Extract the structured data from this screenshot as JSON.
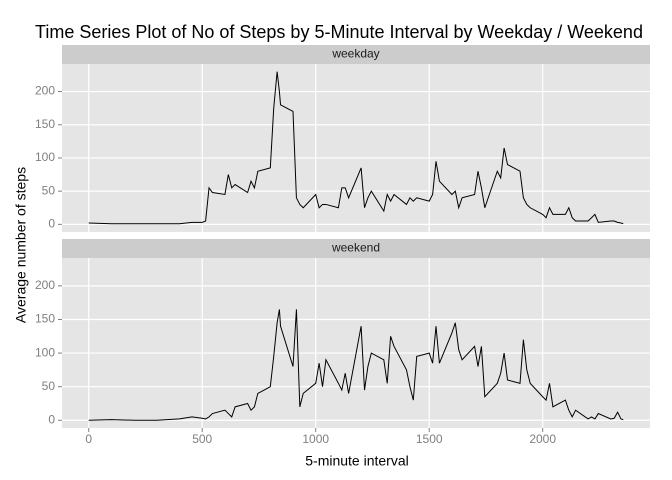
{
  "chart_data": {
    "type": "line",
    "title": "Time Series Plot of No of Steps by 5-Minute Interval by Weekday / Weekend",
    "xlabel": "5-minute interval",
    "ylabel": "Average number of steps",
    "facet": true,
    "grid": true,
    "x": [
      0,
      100,
      200,
      300,
      400,
      455,
      500,
      515,
      530,
      545,
      600,
      615,
      630,
      645,
      700,
      715,
      730,
      745,
      800,
      815,
      830,
      840,
      845,
      900,
      915,
      930,
      945,
      1000,
      1015,
      1030,
      1045,
      1100,
      1115,
      1130,
      1145,
      1200,
      1215,
      1230,
      1245,
      1300,
      1315,
      1330,
      1345,
      1400,
      1415,
      1430,
      1445,
      1500,
      1515,
      1530,
      1545,
      1600,
      1615,
      1630,
      1645,
      1700,
      1715,
      1730,
      1745,
      1800,
      1815,
      1830,
      1845,
      1900,
      1915,
      1930,
      1945,
      2000,
      2015,
      2030,
      2045,
      2100,
      2115,
      2130,
      2145,
      2200,
      2215,
      2230,
      2245,
      2300,
      2315,
      2330,
      2345,
      2355
    ],
    "series": [
      {
        "name": "weekday",
        "color": "#000000",
        "values": [
          2,
          1,
          1,
          1,
          1,
          3,
          3,
          5,
          55,
          48,
          45,
          75,
          55,
          60,
          48,
          65,
          55,
          80,
          85,
          175,
          230,
          200,
          180,
          170,
          40,
          30,
          25,
          45,
          25,
          30,
          30,
          25,
          55,
          55,
          40,
          85,
          25,
          40,
          50,
          20,
          45,
          35,
          45,
          30,
          40,
          35,
          40,
          35,
          45,
          95,
          65,
          45,
          50,
          25,
          40,
          45,
          80,
          55,
          25,
          80,
          70,
          115,
          90,
          80,
          40,
          30,
          25,
          15,
          10,
          25,
          15,
          15,
          25,
          10,
          5,
          5,
          10,
          15,
          3,
          5,
          5,
          3,
          2,
          1
        ]
      },
      {
        "name": "weekend",
        "color": "#000000",
        "values": [
          0,
          1,
          0,
          0,
          2,
          5,
          3,
          2,
          5,
          10,
          15,
          10,
          5,
          20,
          25,
          15,
          20,
          40,
          50,
          95,
          145,
          165,
          140,
          80,
          165,
          20,
          40,
          55,
          85,
          50,
          90,
          55,
          45,
          70,
          40,
          140,
          45,
          80,
          100,
          90,
          55,
          125,
          110,
          75,
          50,
          30,
          95,
          100,
          85,
          140,
          85,
          130,
          145,
          105,
          90,
          110,
          80,
          110,
          35,
          55,
          70,
          100,
          60,
          55,
          120,
          75,
          55,
          35,
          30,
          55,
          20,
          30,
          15,
          5,
          15,
          2,
          5,
          2,
          10,
          2,
          3,
          12,
          2,
          1
        ]
      }
    ],
    "xlim": [
      -117.75,
      2472.75
    ],
    "ylim": [
      -11.5,
      241.5
    ],
    "xticks": [
      0,
      500,
      1000,
      1500,
      2000
    ],
    "yticks": [
      0,
      50,
      100,
      150,
      200
    ]
  }
}
